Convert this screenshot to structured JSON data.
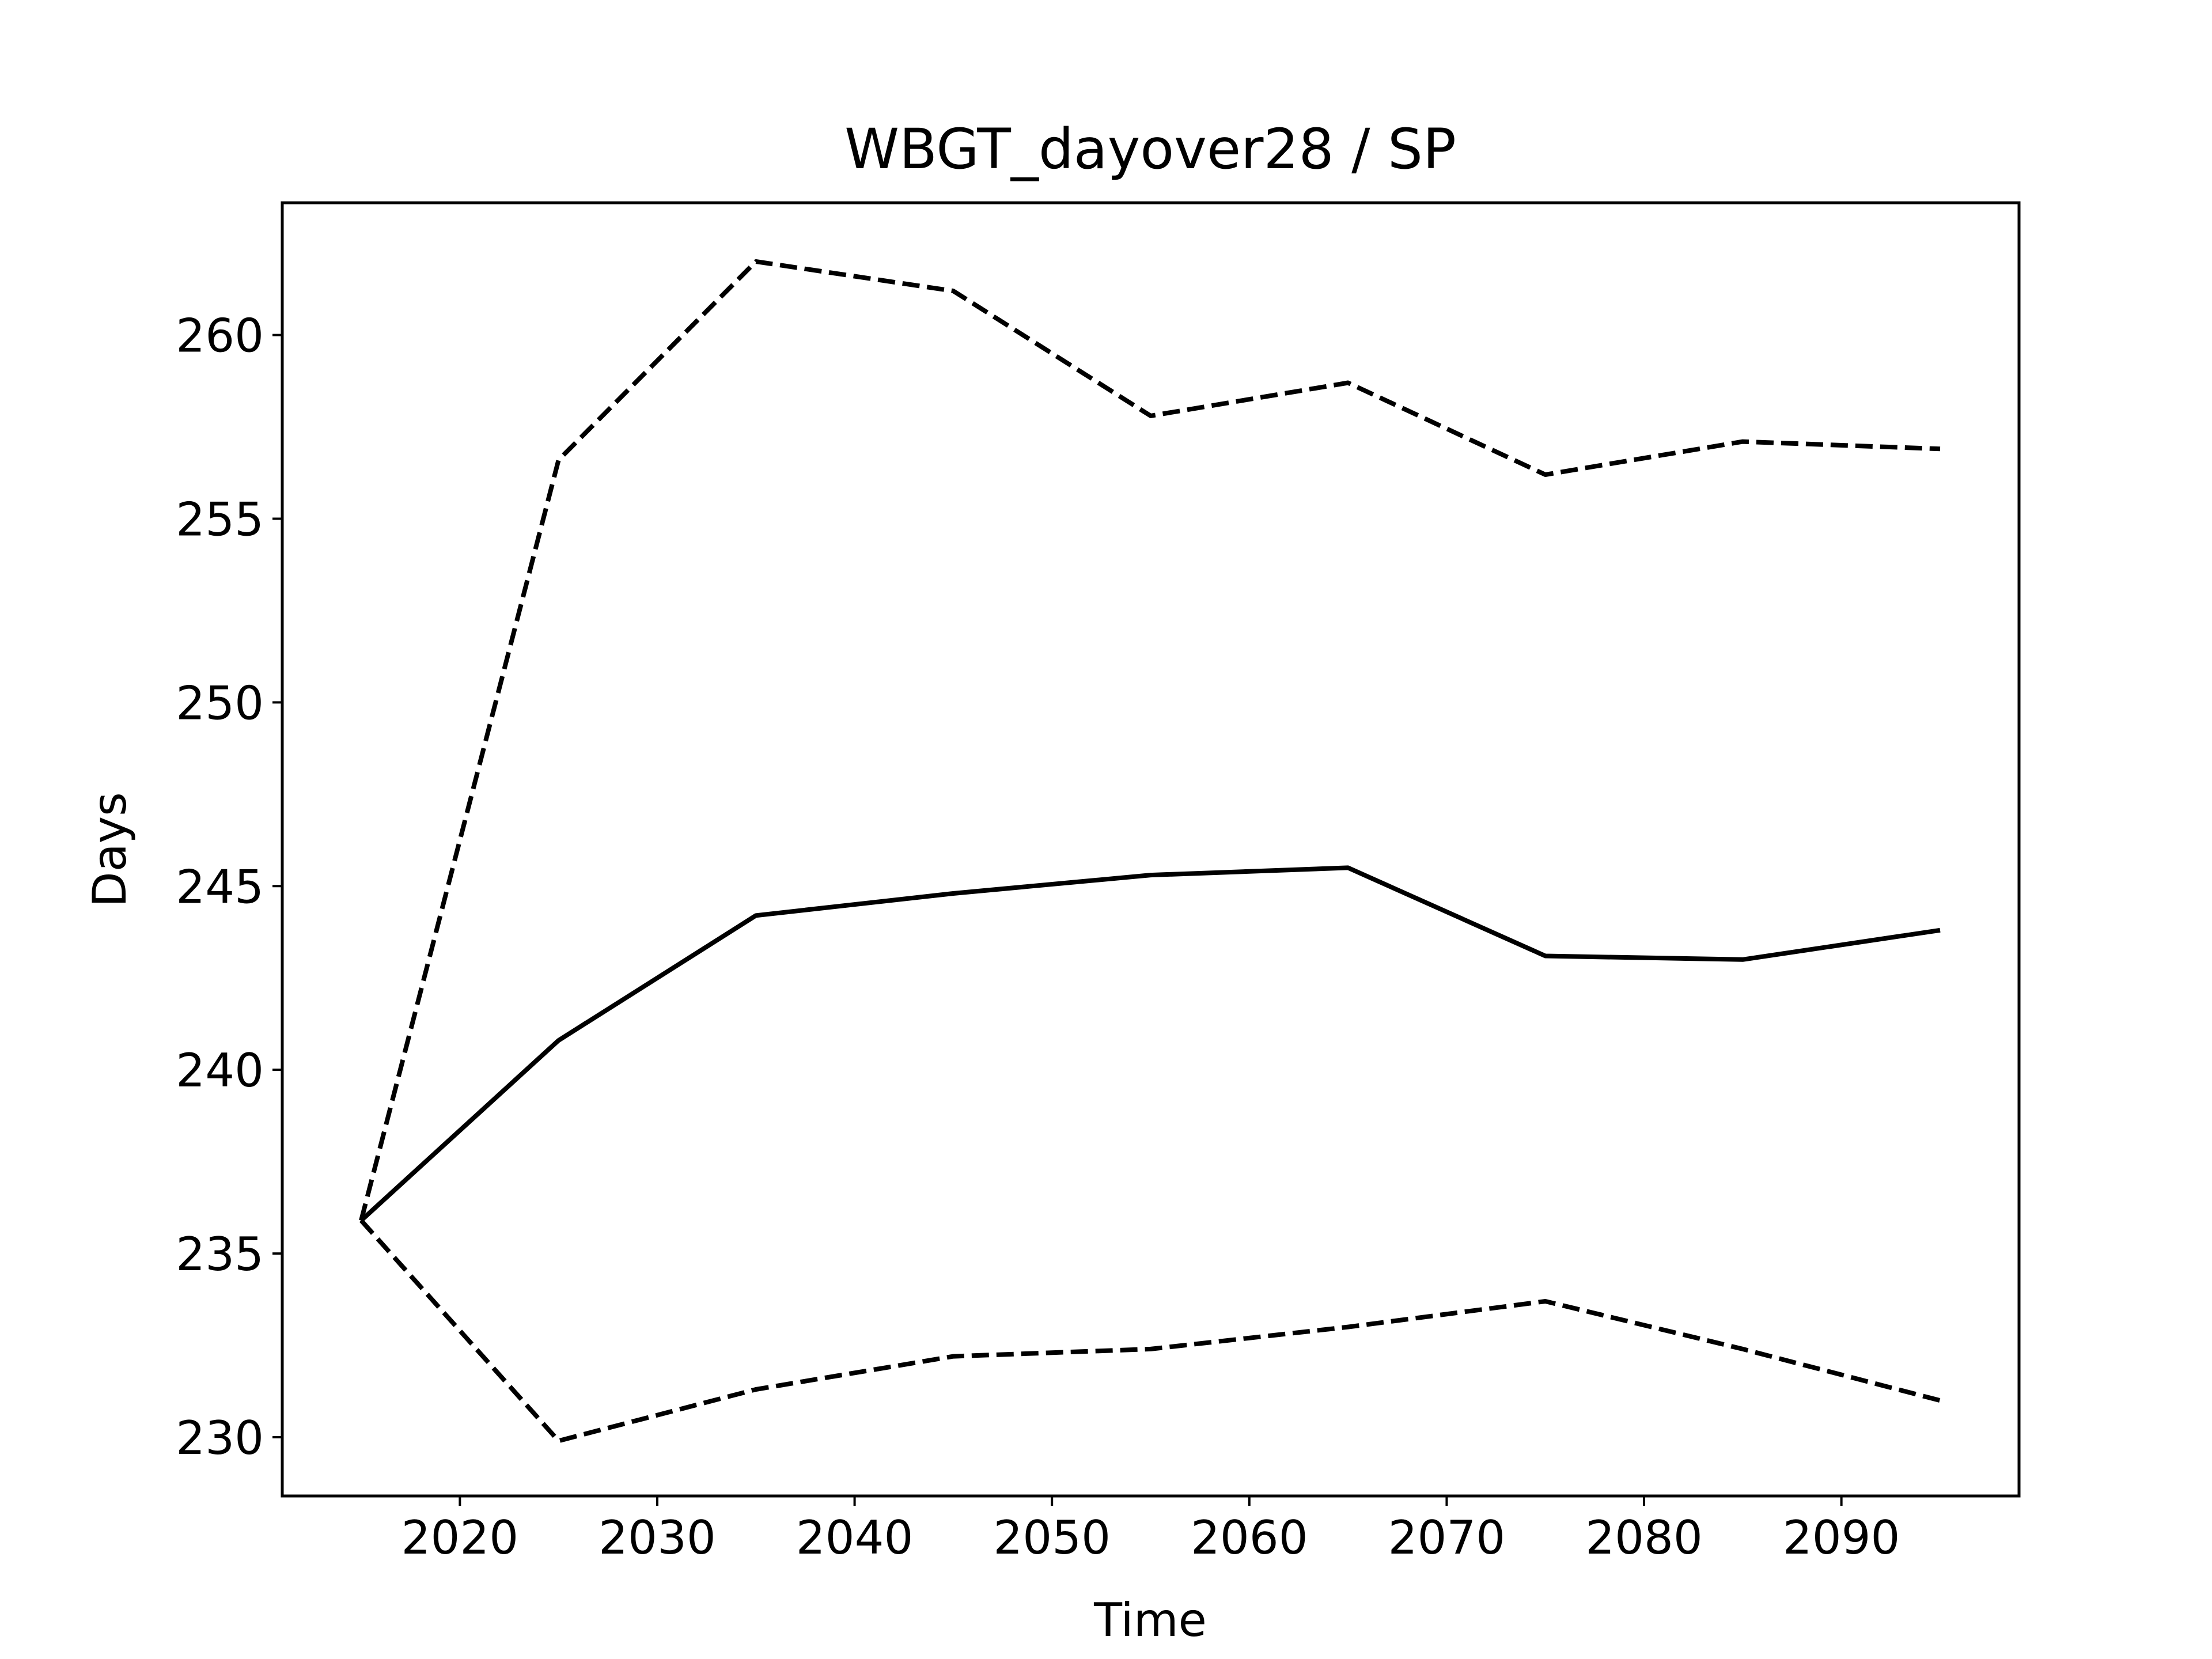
{
  "chart_data": {
    "type": "line",
    "title": "WBGT_dayover28 / SP",
    "xlabel": "Time",
    "ylabel": "Days",
    "xlim": [
      2011,
      2099
    ],
    "ylim": [
      228.4,
      263.6
    ],
    "xticks": [
      2020,
      2030,
      2040,
      2050,
      2060,
      2070,
      2080,
      2090
    ],
    "yticks": [
      230,
      235,
      240,
      245,
      250,
      255,
      260
    ],
    "grid": false,
    "legend": "none",
    "x": [
      2015,
      2025,
      2035,
      2045,
      2055,
      2065,
      2075,
      2085,
      2095
    ],
    "series": [
      {
        "style": "solid",
        "color": "#000000",
        "values": [
          235.9,
          240.8,
          244.2,
          244.8,
          245.3,
          245.5,
          243.1,
          243.0,
          243.8
        ]
      },
      {
        "style": "dashed",
        "color": "#000000",
        "values": [
          235.9,
          256.6,
          262.0,
          261.2,
          257.8,
          258.7,
          256.2,
          257.1,
          256.9
        ]
      },
      {
        "style": "dashed",
        "color": "#000000",
        "values": [
          235.9,
          229.9,
          231.3,
          232.2,
          232.4,
          233.0,
          233.7,
          232.4,
          231.0
        ]
      }
    ]
  }
}
